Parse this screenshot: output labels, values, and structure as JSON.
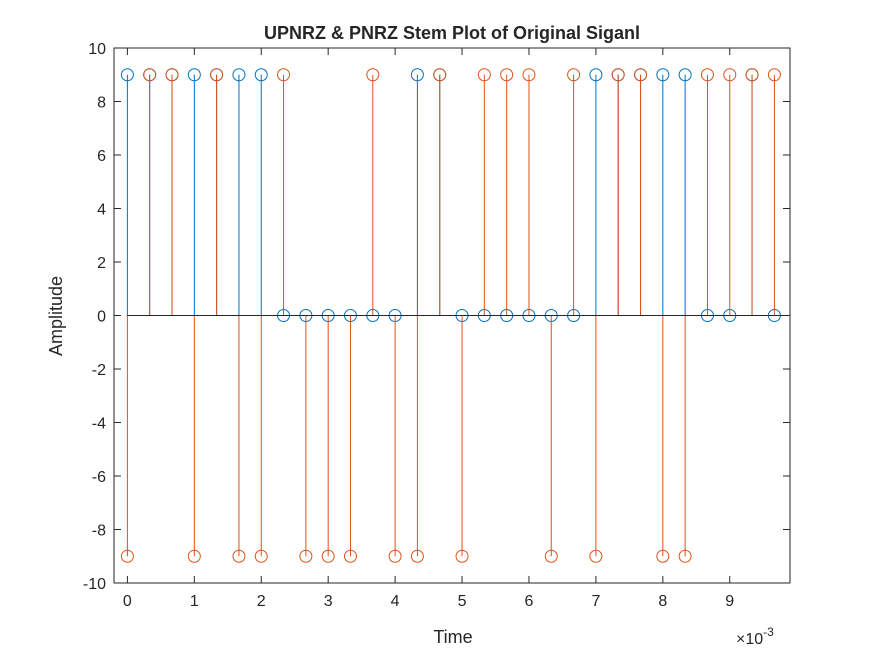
{
  "chart_data": {
    "type": "stem",
    "title": "UPNRZ & PNRZ Stem Plot of Original Siganl",
    "xlabel": "Time",
    "ylabel": "Amplitude",
    "x_exponent_label": "×10",
    "x_exponent_power": "-3",
    "x_scale": 0.001,
    "xlim": [
      -0.0002,
      0.0099
    ],
    "ylim": [
      -10,
      10
    ],
    "xticks": [
      0,
      1,
      2,
      3,
      4,
      5,
      6,
      7,
      8,
      9
    ],
    "yticks": [
      -10,
      -8,
      -6,
      -4,
      -2,
      0,
      2,
      4,
      6,
      8,
      10
    ],
    "xtick_labels": [
      "0",
      "1",
      "2",
      "3",
      "4",
      "5",
      "6",
      "7",
      "8",
      "9"
    ],
    "ytick_labels": [
      "-10",
      "-8",
      "-6",
      "-4",
      "-2",
      "0",
      "2",
      "4",
      "6",
      "8",
      "10"
    ],
    "grid": false,
    "series": [
      {
        "color": "#0072BD",
        "x": [
          0,
          0.000333,
          0.000667,
          0.001,
          0.001333,
          0.001667,
          0.002,
          0.002333,
          0.002667,
          0.003,
          0.003333,
          0.003667,
          0.004,
          0.004333,
          0.004667,
          0.005,
          0.005333,
          0.005667,
          0.006,
          0.006333,
          0.006667,
          0.007,
          0.007333,
          0.007667,
          0.008,
          0.008333,
          0.008667,
          0.009,
          0.009333,
          0.009667
        ],
        "values": [
          9,
          9,
          9,
          9,
          9,
          9,
          9,
          0,
          0,
          0,
          0,
          0,
          0,
          9,
          9,
          0,
          0,
          0,
          0,
          0,
          0,
          9,
          9,
          9,
          9,
          9,
          0,
          0,
          9,
          0
        ]
      },
      {
        "color": "#D95319",
        "x": [
          0,
          0.000333,
          0.000667,
          0.001,
          0.001333,
          0.001667,
          0.002,
          0.002333,
          0.002667,
          0.003,
          0.003333,
          0.003667,
          0.004,
          0.004333,
          0.004667,
          0.005,
          0.005333,
          0.005667,
          0.006,
          0.006333,
          0.006667,
          0.007,
          0.007333,
          0.007667,
          0.008,
          0.008333,
          0.008667,
          0.009,
          0.009333,
          0.009667
        ],
        "values": [
          -9,
          9,
          9,
          -9,
          9,
          -9,
          -9,
          9,
          -9,
          -9,
          -9,
          9,
          -9,
          -9,
          9,
          -9,
          9,
          9,
          9,
          -9,
          9,
          -9,
          9,
          9,
          -9,
          -9,
          9,
          9,
          9,
          9
        ]
      }
    ]
  }
}
